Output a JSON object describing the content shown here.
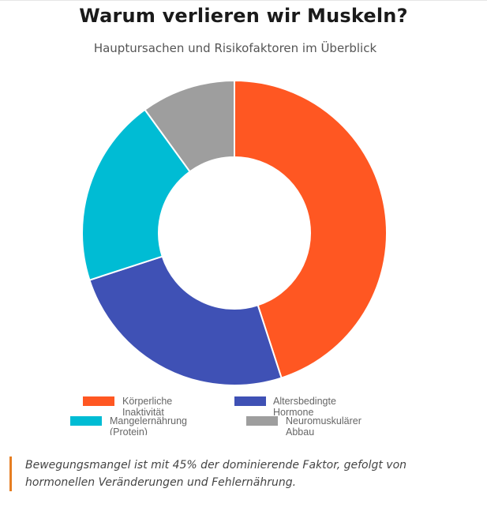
{
  "header": {
    "title": "Warum verlieren wir Muskeln?",
    "subtitle": "Hauptursachen und Risikofaktoren im Überblick"
  },
  "chart_data": {
    "type": "doughnut",
    "title": "Warum verlieren wir Muskeln?",
    "subtitle": "Hauptursachen und Risikofaktoren im Überblick",
    "legend_position": "bottom",
    "series": [
      {
        "name": "Körperliche Inaktivität",
        "label_lines": [
          "Körperliche",
          "Inaktivität"
        ],
        "value": 45,
        "color": "#ff5722"
      },
      {
        "name": "Altersbedingte Hormone",
        "label_lines": [
          "Altersbedingte",
          "Hormone"
        ],
        "value": 25,
        "color": "#3f51b5"
      },
      {
        "name": "Mangelernährung (Protein)",
        "label_lines": [
          "Mangelernährung",
          "(Protein)"
        ],
        "value": 20,
        "color": "#00bcd4"
      },
      {
        "name": "Neuromuskulärer Abbau",
        "label_lines": [
          "Neuromuskulärer",
          "Abbau"
        ],
        "value": 10,
        "color": "#9e9e9e"
      }
    ]
  },
  "caption": {
    "text": "Bewegungsmangel ist mit 45% der dominierende Faktor, gefolgt von hormonellen Veränderungen und Fehlernährung."
  }
}
